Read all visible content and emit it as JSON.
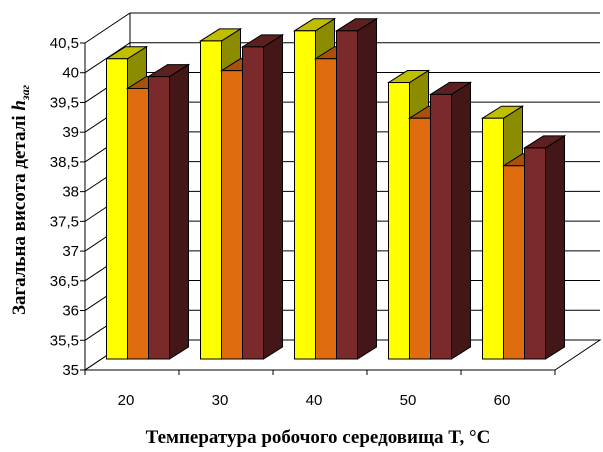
{
  "chart_data": {
    "type": "bar",
    "title": "",
    "xlabel": "Температура робочого середовища T, °C",
    "ylabel": "Загальна висота деталі h заг",
    "categories": [
      "20",
      "30",
      "40",
      "50",
      "60"
    ],
    "ylim": [
      35,
      40.5
    ],
    "yticks": [
      "35",
      "35,5",
      "36",
      "36,5",
      "37",
      "37,5",
      "38",
      "38,5",
      "39",
      "39,5",
      "40",
      "40,5"
    ],
    "series": [
      {
        "values": [
          40.05,
          40.35,
          40.52,
          39.65,
          39.05
        ],
        "color": "#ffff00"
      },
      {
        "values": [
          39.55,
          39.85,
          40.05,
          39.05,
          38.25
        ],
        "color": "#e06c10"
      },
      {
        "values": [
          39.75,
          40.25,
          40.52,
          39.45,
          38.55
        ],
        "color": "#7a2a2a"
      }
    ],
    "grid": true,
    "legend": "none",
    "style": "3d-column"
  }
}
